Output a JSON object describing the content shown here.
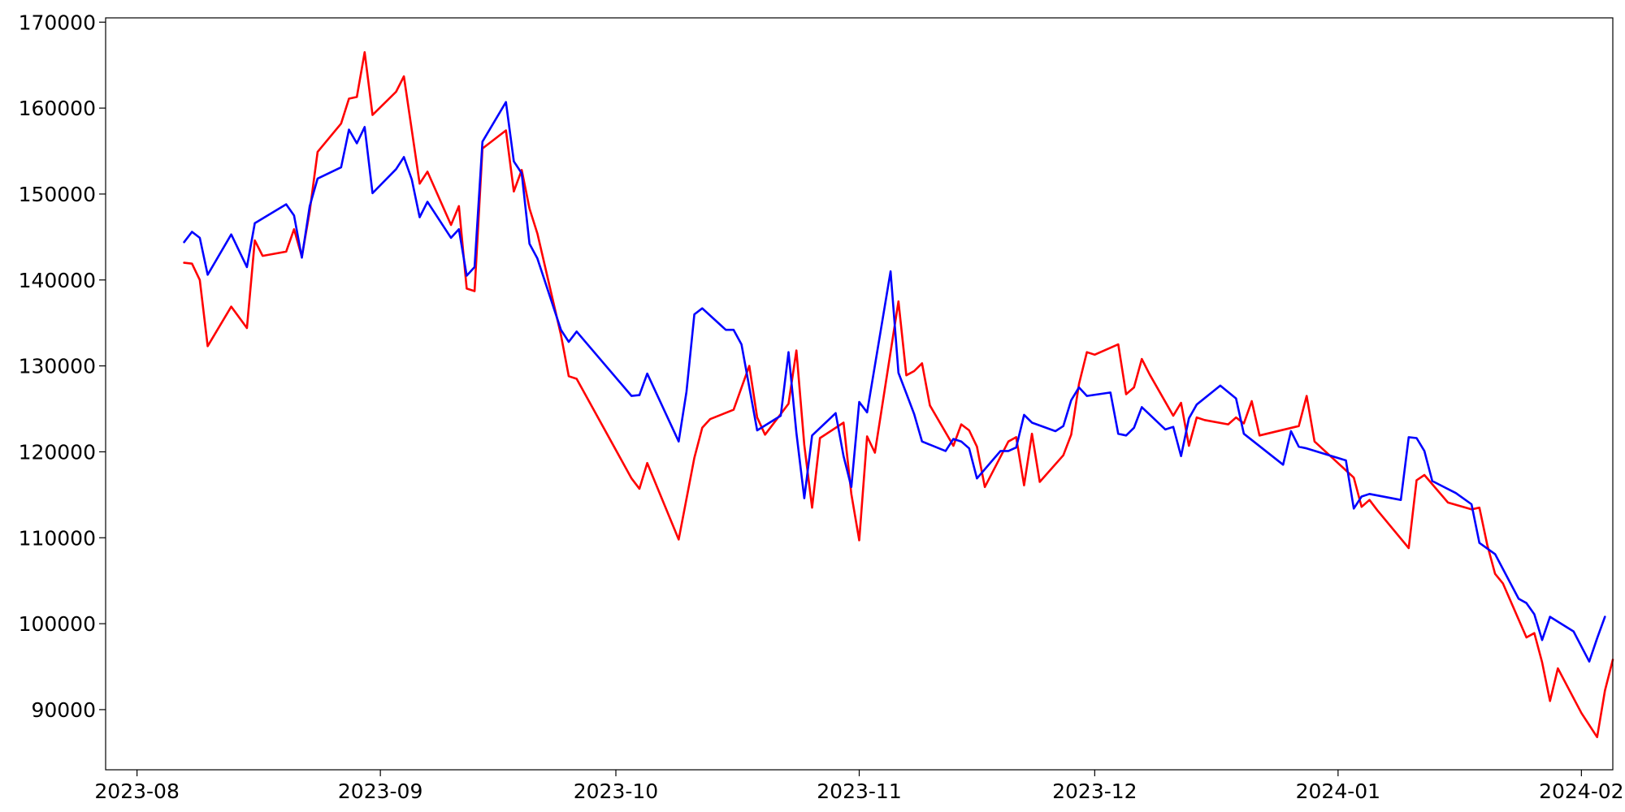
{
  "chart_data": {
    "type": "line",
    "title": "",
    "xlabel": "",
    "ylabel": "",
    "grid": false,
    "legend": "none",
    "xlim": [
      "2023-07-28",
      "2024-02-05"
    ],
    "ylim": [
      83000,
      170500
    ],
    "x_ticks": [
      "2023-08",
      "2023-09",
      "2023-10",
      "2023-11",
      "2023-12",
      "2024-01",
      "2024-02"
    ],
    "y_ticks": [
      90000,
      100000,
      110000,
      120000,
      130000,
      140000,
      150000,
      160000,
      170000
    ],
    "series": [
      {
        "color": "#ff0000",
        "points": [
          [
            "2023-08-07",
            142000
          ],
          [
            "2023-08-08",
            141900
          ],
          [
            "2023-08-09",
            140000
          ],
          [
            "2023-08-10",
            132300
          ],
          [
            "2023-08-13",
            136900
          ],
          [
            "2023-08-15",
            134400
          ],
          [
            "2023-08-16",
            144600
          ],
          [
            "2023-08-17",
            142800
          ],
          [
            "2023-08-20",
            143300
          ],
          [
            "2023-08-21",
            145900
          ],
          [
            "2023-08-22",
            142700
          ],
          [
            "2023-08-23",
            148000
          ],
          [
            "2023-08-24",
            154900
          ],
          [
            "2023-08-27",
            158200
          ],
          [
            "2023-08-28",
            161100
          ],
          [
            "2023-08-29",
            161300
          ],
          [
            "2023-08-30",
            166500
          ],
          [
            "2023-08-31",
            159200
          ],
          [
            "2023-09-03",
            161900
          ],
          [
            "2023-09-04",
            163700
          ],
          [
            "2023-09-06",
            151200
          ],
          [
            "2023-09-07",
            152600
          ],
          [
            "2023-09-10",
            146400
          ],
          [
            "2023-09-11",
            148600
          ],
          [
            "2023-09-12",
            139000
          ],
          [
            "2023-09-13",
            138700
          ],
          [
            "2023-09-14",
            155300
          ],
          [
            "2023-09-17",
            157400
          ],
          [
            "2023-09-18",
            150300
          ],
          [
            "2023-09-19",
            152800
          ],
          [
            "2023-09-20",
            148300
          ],
          [
            "2023-09-21",
            145400
          ],
          [
            "2023-09-24",
            133600
          ],
          [
            "2023-09-25",
            128800
          ],
          [
            "2023-09-26",
            128500
          ],
          [
            "2023-10-03",
            116900
          ],
          [
            "2023-10-04",
            115700
          ],
          [
            "2023-10-05",
            118700
          ],
          [
            "2023-10-09",
            109800
          ],
          [
            "2023-10-11",
            119300
          ],
          [
            "2023-10-12",
            122800
          ],
          [
            "2023-10-13",
            123800
          ],
          [
            "2023-10-16",
            124900
          ],
          [
            "2023-10-18",
            130000
          ],
          [
            "2023-10-19",
            124000
          ],
          [
            "2023-10-20",
            122000
          ],
          [
            "2023-10-23",
            125600
          ],
          [
            "2023-10-24",
            131800
          ],
          [
            "2023-10-25",
            120800
          ],
          [
            "2023-10-26",
            113500
          ],
          [
            "2023-10-27",
            121600
          ],
          [
            "2023-10-30",
            123400
          ],
          [
            "2023-10-31",
            115100
          ],
          [
            "2023-11-01",
            109700
          ],
          [
            "2023-11-02",
            121800
          ],
          [
            "2023-11-03",
            119900
          ],
          [
            "2023-11-06",
            137500
          ],
          [
            "2023-11-07",
            128900
          ],
          [
            "2023-11-08",
            129400
          ],
          [
            "2023-11-09",
            130300
          ],
          [
            "2023-11-10",
            125400
          ],
          [
            "2023-11-13",
            120700
          ],
          [
            "2023-11-14",
            123200
          ],
          [
            "2023-11-15",
            122500
          ],
          [
            "2023-11-16",
            120600
          ],
          [
            "2023-11-17",
            115900
          ],
          [
            "2023-11-20",
            121200
          ],
          [
            "2023-11-21",
            121700
          ],
          [
            "2023-11-22",
            116100
          ],
          [
            "2023-11-23",
            122100
          ],
          [
            "2023-11-24",
            116500
          ],
          [
            "2023-11-27",
            119600
          ],
          [
            "2023-11-28",
            122000
          ],
          [
            "2023-11-29",
            127900
          ],
          [
            "2023-11-30",
            131600
          ],
          [
            "2023-12-01",
            131300
          ],
          [
            "2023-12-04",
            132500
          ],
          [
            "2023-12-05",
            126700
          ],
          [
            "2023-12-06",
            127500
          ],
          [
            "2023-12-07",
            130800
          ],
          [
            "2023-12-08",
            129000
          ],
          [
            "2023-12-11",
            124200
          ],
          [
            "2023-12-12",
            125700
          ],
          [
            "2023-12-13",
            120700
          ],
          [
            "2023-12-14",
            124000
          ],
          [
            "2023-12-15",
            123700
          ],
          [
            "2023-12-18",
            123200
          ],
          [
            "2023-12-19",
            124000
          ],
          [
            "2023-12-20",
            123300
          ],
          [
            "2023-12-21",
            125900
          ],
          [
            "2023-12-22",
            121900
          ],
          [
            "2023-12-27",
            123000
          ],
          [
            "2023-12-28",
            126500
          ],
          [
            "2023-12-29",
            121200
          ],
          [
            "2024-01-03",
            117000
          ],
          [
            "2024-01-04",
            113600
          ],
          [
            "2024-01-05",
            114400
          ],
          [
            "2024-01-06",
            113200
          ],
          [
            "2024-01-10",
            108800
          ],
          [
            "2024-01-11",
            116700
          ],
          [
            "2024-01-12",
            117300
          ],
          [
            "2024-01-15",
            114100
          ],
          [
            "2024-01-18",
            113300
          ],
          [
            "2024-01-19",
            113500
          ],
          [
            "2024-01-20",
            109200
          ],
          [
            "2024-01-21",
            105800
          ],
          [
            "2024-01-22",
            104700
          ],
          [
            "2024-01-25",
            98400
          ],
          [
            "2024-01-26",
            98900
          ],
          [
            "2024-01-27",
            95500
          ],
          [
            "2024-01-28",
            91000
          ],
          [
            "2024-01-29",
            94800
          ],
          [
            "2024-02-01",
            89600
          ],
          [
            "2024-02-03",
            86800
          ],
          [
            "2024-02-04",
            92200
          ],
          [
            "2024-02-05",
            95800
          ]
        ]
      },
      {
        "color": "#0000ff",
        "points": [
          [
            "2023-08-07",
            144400
          ],
          [
            "2023-08-08",
            145600
          ],
          [
            "2023-08-09",
            144900
          ],
          [
            "2023-08-10",
            140600
          ],
          [
            "2023-08-13",
            145300
          ],
          [
            "2023-08-15",
            141500
          ],
          [
            "2023-08-16",
            146600
          ],
          [
            "2023-08-20",
            148800
          ],
          [
            "2023-08-21",
            147500
          ],
          [
            "2023-08-22",
            142600
          ],
          [
            "2023-08-23",
            148600
          ],
          [
            "2023-08-24",
            151800
          ],
          [
            "2023-08-27",
            153100
          ],
          [
            "2023-08-28",
            157500
          ],
          [
            "2023-08-29",
            155900
          ],
          [
            "2023-08-30",
            157800
          ],
          [
            "2023-08-31",
            150100
          ],
          [
            "2023-09-03",
            152900
          ],
          [
            "2023-09-04",
            154300
          ],
          [
            "2023-09-05",
            151700
          ],
          [
            "2023-09-06",
            147300
          ],
          [
            "2023-09-07",
            149100
          ],
          [
            "2023-09-10",
            144900
          ],
          [
            "2023-09-11",
            145900
          ],
          [
            "2023-09-12",
            140500
          ],
          [
            "2023-09-13",
            141500
          ],
          [
            "2023-09-14",
            156100
          ],
          [
            "2023-09-17",
            160700
          ],
          [
            "2023-09-18",
            153800
          ],
          [
            "2023-09-19",
            152400
          ],
          [
            "2023-09-20",
            144200
          ],
          [
            "2023-09-21",
            142500
          ],
          [
            "2023-09-24",
            134200
          ],
          [
            "2023-09-25",
            132800
          ],
          [
            "2023-09-26",
            134000
          ],
          [
            "2023-10-03",
            126500
          ],
          [
            "2023-10-04",
            126600
          ],
          [
            "2023-10-05",
            129100
          ],
          [
            "2023-10-09",
            121200
          ],
          [
            "2023-10-10",
            127000
          ],
          [
            "2023-10-11",
            136000
          ],
          [
            "2023-10-12",
            136700
          ],
          [
            "2023-10-15",
            134200
          ],
          [
            "2023-10-16",
            134200
          ],
          [
            "2023-10-17",
            132500
          ],
          [
            "2023-10-19",
            122500
          ],
          [
            "2023-10-22",
            124200
          ],
          [
            "2023-10-23",
            131600
          ],
          [
            "2023-10-24",
            122200
          ],
          [
            "2023-10-25",
            114600
          ],
          [
            "2023-10-26",
            121900
          ],
          [
            "2023-10-29",
            124500
          ],
          [
            "2023-10-30",
            119500
          ],
          [
            "2023-10-31",
            115900
          ],
          [
            "2023-11-01",
            125800
          ],
          [
            "2023-11-02",
            124600
          ],
          [
            "2023-11-05",
            141000
          ],
          [
            "2023-11-06",
            129200
          ],
          [
            "2023-11-07",
            126800
          ],
          [
            "2023-11-08",
            124400
          ],
          [
            "2023-11-09",
            121200
          ],
          [
            "2023-11-12",
            120100
          ],
          [
            "2023-11-13",
            121500
          ],
          [
            "2023-11-14",
            121200
          ],
          [
            "2023-11-15",
            120400
          ],
          [
            "2023-11-16",
            116900
          ],
          [
            "2023-11-19",
            120100
          ],
          [
            "2023-11-20",
            120100
          ],
          [
            "2023-11-21",
            120500
          ],
          [
            "2023-11-22",
            124300
          ],
          [
            "2023-11-23",
            123400
          ],
          [
            "2023-11-26",
            122400
          ],
          [
            "2023-11-27",
            123000
          ],
          [
            "2023-11-28",
            126000
          ],
          [
            "2023-11-29",
            127500
          ],
          [
            "2023-11-30",
            126500
          ],
          [
            "2023-12-03",
            126900
          ],
          [
            "2023-12-04",
            122100
          ],
          [
            "2023-12-05",
            121900
          ],
          [
            "2023-12-06",
            122800
          ],
          [
            "2023-12-07",
            125200
          ],
          [
            "2023-12-10",
            122600
          ],
          [
            "2023-12-11",
            122900
          ],
          [
            "2023-12-12",
            119500
          ],
          [
            "2023-12-13",
            123900
          ],
          [
            "2023-12-14",
            125500
          ],
          [
            "2023-12-17",
            127700
          ],
          [
            "2023-12-19",
            126200
          ],
          [
            "2023-12-20",
            122100
          ],
          [
            "2023-12-25",
            118500
          ],
          [
            "2023-12-26",
            122400
          ],
          [
            "2023-12-27",
            120600
          ],
          [
            "2023-12-28",
            120400
          ],
          [
            "2024-01-02",
            119000
          ],
          [
            "2024-01-03",
            113400
          ],
          [
            "2024-01-04",
            114800
          ],
          [
            "2024-01-05",
            115100
          ],
          [
            "2024-01-09",
            114400
          ],
          [
            "2024-01-10",
            121700
          ],
          [
            "2024-01-11",
            121600
          ],
          [
            "2024-01-12",
            120100
          ],
          [
            "2024-01-13",
            116600
          ],
          [
            "2024-01-16",
            115200
          ],
          [
            "2024-01-18",
            113900
          ],
          [
            "2024-01-19",
            109400
          ],
          [
            "2024-01-21",
            108100
          ],
          [
            "2024-01-24",
            102900
          ],
          [
            "2024-01-25",
            102400
          ],
          [
            "2024-01-26",
            101100
          ],
          [
            "2024-01-27",
            98100
          ],
          [
            "2024-01-28",
            100800
          ],
          [
            "2024-01-31",
            99100
          ],
          [
            "2024-02-02",
            95600
          ],
          [
            "2024-02-03",
            98300
          ],
          [
            "2024-02-04",
            100800
          ]
        ]
      }
    ]
  }
}
